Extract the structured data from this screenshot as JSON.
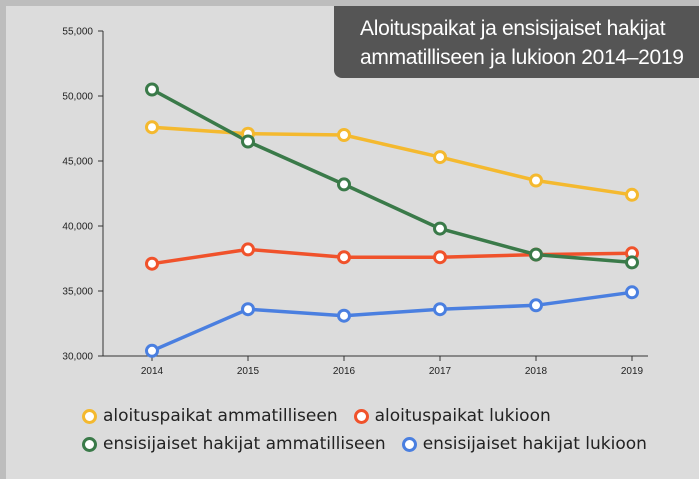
{
  "colors": {
    "aloituspaikat_ammatilliseen": "#f4b92f",
    "aloituspaikat_lukioon": "#f0522b",
    "ensisijaiset_ammatilliseen": "#3a7a49",
    "ensisijaiset_lukioon": "#4a7fe0",
    "title_bg": "#555555",
    "panel_bg": "#dcdcdc"
  },
  "title_lines": [
    "Aloituspaikat ja ensisijaiset hakijat",
    "ammatilliseen ja lukioon 2014–2019"
  ],
  "legend": [
    "aloituspaikat ammatilliseen",
    "aloituspaikat lukioon",
    "ensisijaiset hakijat ammatilliseen",
    "ensisijaiset hakijat lukioon"
  ],
  "chart_data": {
    "type": "line",
    "title": "Aloituspaikat ja ensisijaiset hakijat ammatilliseen ja lukioon 2014–2019",
    "xlabel": "",
    "ylabel": "",
    "x": [
      "2014",
      "2015",
      "2016",
      "2017",
      "2018",
      "2019"
    ],
    "ylim": [
      30000,
      55000
    ],
    "yticks": [
      30000,
      35000,
      40000,
      45000,
      50000,
      55000
    ],
    "ytick_labels": [
      "30,000",
      "35,000",
      "40,000",
      "45,000",
      "50,000",
      "55,000"
    ],
    "grid": false,
    "legend_position": "bottom",
    "series": [
      {
        "name": "aloituspaikat ammatilliseen",
        "values": [
          47600,
          47100,
          47000,
          45300,
          43500,
          42400
        ]
      },
      {
        "name": "aloituspaikat lukioon",
        "values": [
          37100,
          38200,
          37600,
          37600,
          37800,
          37900
        ]
      },
      {
        "name": "ensisijaiset hakijat ammatilliseen",
        "values": [
          50500,
          46500,
          43200,
          39800,
          37800,
          37200
        ]
      },
      {
        "name": "ensisijaiset hakijat lukioon",
        "values": [
          30400,
          33600,
          33100,
          33600,
          33900,
          34900
        ]
      }
    ]
  }
}
